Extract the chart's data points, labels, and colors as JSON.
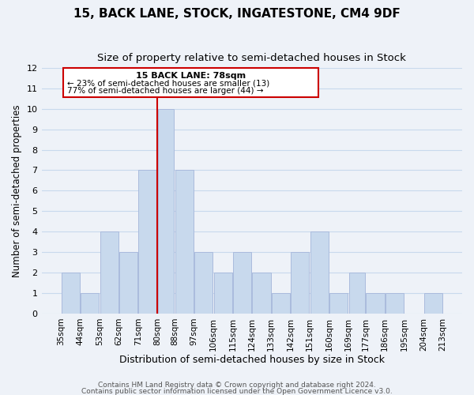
{
  "title1": "15, BACK LANE, STOCK, INGATESTONE, CM4 9DF",
  "title2": "Size of property relative to semi-detached houses in Stock",
  "xlabel": "Distribution of semi-detached houses by size in Stock",
  "ylabel": "Number of semi-detached properties",
  "bar_left_edges": [
    35,
    44,
    53,
    62,
    71,
    80,
    88,
    97,
    106,
    115,
    124,
    133,
    142,
    151,
    160,
    169,
    177,
    186,
    195,
    204
  ],
  "bar_widths": [
    9,
    9,
    9,
    9,
    9,
    8,
    9,
    9,
    9,
    9,
    9,
    9,
    9,
    9,
    9,
    8,
    9,
    9,
    9,
    9
  ],
  "bar_heights": [
    2,
    1,
    4,
    3,
    7,
    10,
    7,
    3,
    2,
    3,
    2,
    1,
    3,
    4,
    1,
    2,
    1,
    1,
    0,
    1
  ],
  "xtick_labels": [
    "35sqm",
    "44sqm",
    "53sqm",
    "62sqm",
    "71sqm",
    "80sqm",
    "88sqm",
    "97sqm",
    "106sqm",
    "115sqm",
    "124sqm",
    "133sqm",
    "142sqm",
    "151sqm",
    "160sqm",
    "169sqm",
    "177sqm",
    "186sqm",
    "195sqm",
    "204sqm",
    "213sqm"
  ],
  "xtick_positions": [
    35,
    44,
    53,
    62,
    71,
    80,
    88,
    97,
    106,
    115,
    124,
    133,
    142,
    151,
    160,
    169,
    177,
    186,
    195,
    204,
    213
  ],
  "ylim": [
    0,
    12
  ],
  "yticks": [
    0,
    1,
    2,
    3,
    4,
    5,
    6,
    7,
    8,
    9,
    10,
    11,
    12
  ],
  "bar_color": "#c8d9ed",
  "bar_edgecolor": "#aabbdd",
  "grid_color": "#c8d9ed",
  "property_line_x": 80,
  "property_label": "15 BACK LANE: 78sqm",
  "annotation_line1": "← 23% of semi-detached houses are smaller (13)",
  "annotation_line2": "77% of semi-detached houses are larger (44) →",
  "annotation_box_color": "#ffffff",
  "annotation_box_edgecolor": "#cc0000",
  "property_line_color": "#cc0000",
  "footer1": "Contains HM Land Registry data © Crown copyright and database right 2024.",
  "footer2": "Contains public sector information licensed under the Open Government Licence v3.0.",
  "title1_fontsize": 11,
  "title2_fontsize": 9.5,
  "xlabel_fontsize": 9,
  "ylabel_fontsize": 8.5,
  "footer_fontsize": 6.5,
  "background_color": "#eef2f8",
  "xlim_left": 26,
  "xlim_right": 222
}
